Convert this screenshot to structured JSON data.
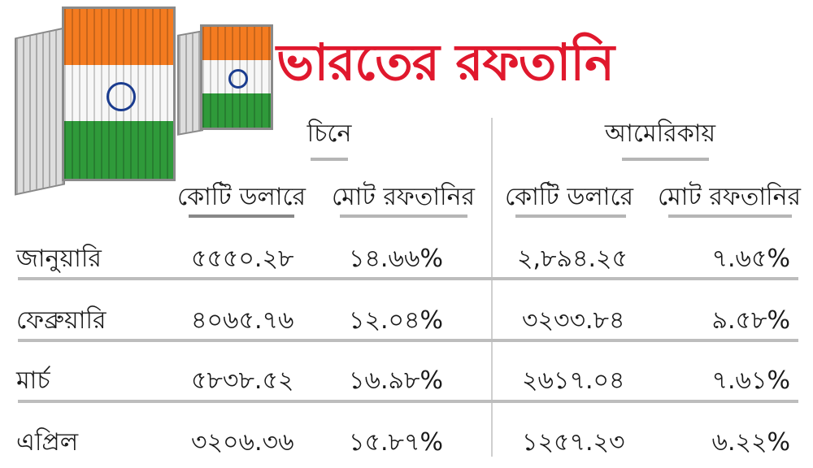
{
  "title": "ভারতের রফতানি",
  "colors": {
    "title": "#e0182d",
    "saffron": "#f47b20",
    "green": "#2f9a3a",
    "chakra": "#1b3c8f"
  },
  "illustration": "indian-flag-shipping-containers",
  "groups": [
    {
      "label": "চিনে",
      "columns": [
        "কোটি ডলারে",
        "মোট রফতানির"
      ]
    },
    {
      "label": "আমেরিকায়",
      "columns": [
        "কোটি ডলারে",
        "মোট রফতানির"
      ]
    }
  ],
  "rows": [
    {
      "month": "জানুয়ারি",
      "values": [
        "৫৫৫০.২৮",
        "১৪.৬৬%",
        "২,৮৯৪.২৫",
        "৭.৬৫%"
      ]
    },
    {
      "month": "ফেব্রুয়ারি",
      "values": [
        "৪০৬৫.৭৬",
        "১২.০৪%",
        "৩২৩৩.৮৪",
        "৯.৫৮%"
      ]
    },
    {
      "month": "মার্চ",
      "values": [
        "৫৮৩৮.৫২",
        "১৬.৯৮%",
        "২৬১৭.০৪",
        "৭.৬১%"
      ]
    },
    {
      "month": "এপ্রিল",
      "values": [
        "৩২০৬.৩৬",
        "১৫.৮৭%",
        "১২৫৭.২৩",
        "৬.২২%"
      ]
    }
  ]
}
